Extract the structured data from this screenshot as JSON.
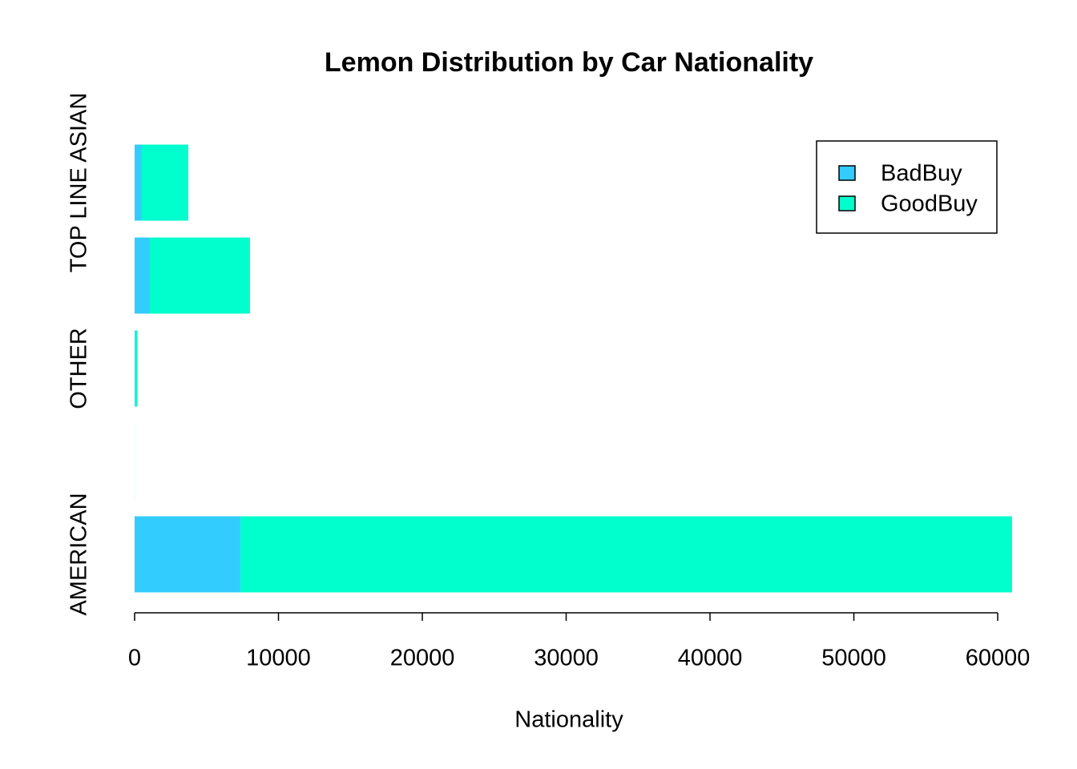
{
  "chart_data": {
    "type": "stacked_barh",
    "title": "Lemon Distribution by Car Nationality",
    "xlabel": "Nationality",
    "categories": [
      "AMERICAN",
      null,
      "OTHER",
      null,
      "TOP LINE ASIAN"
    ],
    "series": [
      {
        "name": "BadBuy",
        "color": "#33CCFF",
        "values": [
          7350,
          1,
          25,
          1060,
          500
        ]
      },
      {
        "name": "GoodBuy",
        "color": "#00FFCC",
        "values": [
          53650,
          4,
          170,
          6960,
          3230
        ]
      }
    ],
    "xlim": [
      0,
      61000
    ],
    "xticks": [
      0,
      10000,
      20000,
      30000,
      40000,
      50000,
      60000
    ],
    "legend": "top-right"
  }
}
